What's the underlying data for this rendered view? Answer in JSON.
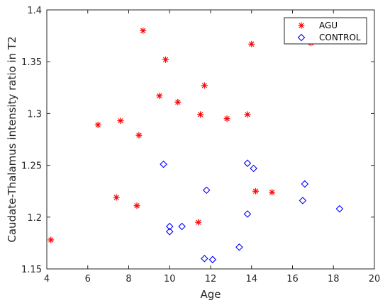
{
  "chart_data": {
    "type": "scatter",
    "xlabel": "Age",
    "ylabel": "Caudate-Thalamus intensity ratio in T2",
    "xlim": [
      4,
      20
    ],
    "ylim": [
      1.15,
      1.4
    ],
    "xticks": [
      "4",
      "6",
      "8",
      "10",
      "12",
      "14",
      "16",
      "18",
      "20"
    ],
    "yticks": [
      "1.15",
      "1.2",
      "1.25",
      "1.3",
      "1.35",
      "1.4"
    ],
    "grid": false,
    "legend_position": "top-right",
    "series": [
      {
        "name": "AGU",
        "marker": "asterisk",
        "color": "#ff0000",
        "points": [
          {
            "x": 4.2,
            "y": 1.178
          },
          {
            "x": 6.5,
            "y": 1.289
          },
          {
            "x": 7.4,
            "y": 1.219
          },
          {
            "x": 7.6,
            "y": 1.293
          },
          {
            "x": 8.4,
            "y": 1.211
          },
          {
            "x": 8.5,
            "y": 1.279
          },
          {
            "x": 8.7,
            "y": 1.38
          },
          {
            "x": 9.5,
            "y": 1.317
          },
          {
            "x": 9.8,
            "y": 1.352
          },
          {
            "x": 10.4,
            "y": 1.311
          },
          {
            "x": 11.4,
            "y": 1.195
          },
          {
            "x": 11.5,
            "y": 1.299
          },
          {
            "x": 11.7,
            "y": 1.327
          },
          {
            "x": 12.8,
            "y": 1.295
          },
          {
            "x": 13.8,
            "y": 1.299
          },
          {
            "x": 14.0,
            "y": 1.367
          },
          {
            "x": 14.2,
            "y": 1.225
          },
          {
            "x": 15.0,
            "y": 1.224
          },
          {
            "x": 16.9,
            "y": 1.368
          }
        ]
      },
      {
        "name": "CONTROL",
        "marker": "diamond",
        "color": "#0000ff",
        "points": [
          {
            "x": 9.7,
            "y": 1.251
          },
          {
            "x": 10.0,
            "y": 1.191
          },
          {
            "x": 10.0,
            "y": 1.186
          },
          {
            "x": 10.6,
            "y": 1.191
          },
          {
            "x": 11.7,
            "y": 1.16
          },
          {
            "x": 11.8,
            "y": 1.226
          },
          {
            "x": 12.1,
            "y": 1.159
          },
          {
            "x": 13.4,
            "y": 1.171
          },
          {
            "x": 13.8,
            "y": 1.252
          },
          {
            "x": 13.8,
            "y": 1.203
          },
          {
            "x": 14.1,
            "y": 1.247
          },
          {
            "x": 16.5,
            "y": 1.216
          },
          {
            "x": 16.6,
            "y": 1.232
          },
          {
            "x": 18.3,
            "y": 1.208
          }
        ]
      }
    ]
  }
}
